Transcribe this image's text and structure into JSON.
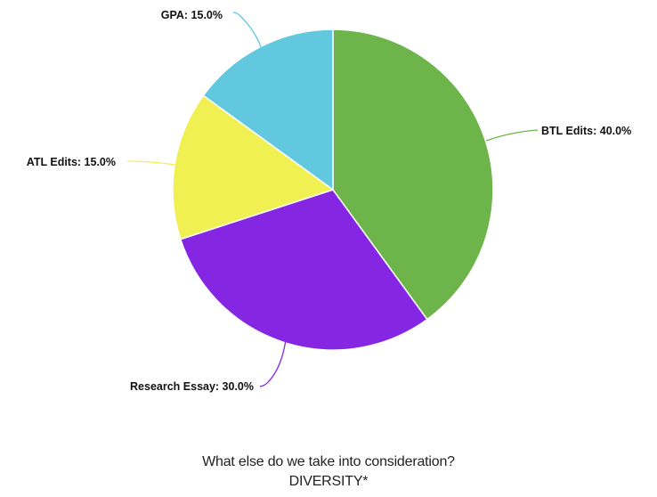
{
  "chart_data": {
    "type": "pie",
    "title": "",
    "slices": [
      {
        "label": "BTL Edits",
        "value": 40.0,
        "display": "BTL Edits: 40.0%",
        "color": "#6db54a"
      },
      {
        "label": "Research Essay",
        "value": 30.0,
        "display": "Research Essay: 30.0%",
        "color": "#8526e3"
      },
      {
        "label": "ATL Edits",
        "value": 15.0,
        "display": "ATL Edits: 15.0%",
        "color": "#f0f052"
      },
      {
        "label": "GPA",
        "value": 15.0,
        "display": "GPA: 15.0%",
        "color": "#62c8e0"
      }
    ],
    "start_angle_deg": 0,
    "direction": "clockwise"
  },
  "caption": {
    "line1": "What else do we take into consideration?",
    "line2": "DIVERSITY*"
  }
}
